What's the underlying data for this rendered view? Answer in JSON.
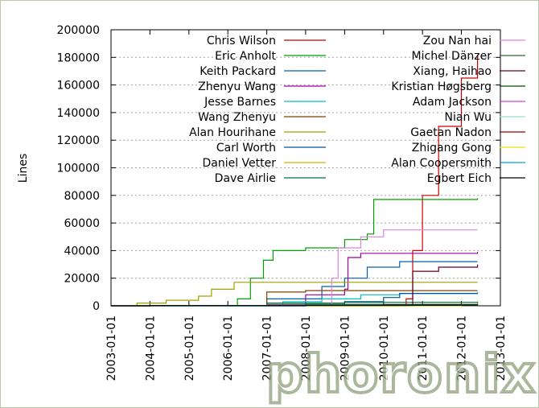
{
  "watermark": "phoronix",
  "chart_data": {
    "type": "line",
    "title": "",
    "xlabel": "",
    "ylabel": "Lines",
    "ylim": [
      0,
      200000
    ],
    "yticks": [
      0,
      20000,
      40000,
      60000,
      80000,
      100000,
      120000,
      140000,
      160000,
      180000,
      200000
    ],
    "xlim": [
      "2003-01-01",
      "2013-01-01"
    ],
    "xticks": [
      "2003-01-01",
      "2004-01-01",
      "2005-01-01",
      "2006-01-01",
      "2007-01-01",
      "2008-01-01",
      "2009-01-01",
      "2010-01-01",
      "2011-01-01",
      "2012-01-01",
      "2013-01-01"
    ],
    "grid": "horizontal-dashed",
    "legend_position": "top-inside",
    "series": [
      {
        "name": "Chris Wilson",
        "color": "#cc0000",
        "points": [
          [
            "2003-01-01",
            0
          ],
          [
            "2010-05-01",
            0
          ],
          [
            "2010-08-01",
            5000
          ],
          [
            "2010-10-01",
            40000
          ],
          [
            "2011-01-01",
            80000
          ],
          [
            "2011-06-01",
            130000
          ],
          [
            "2012-01-01",
            165000
          ],
          [
            "2012-06-01",
            182000
          ]
        ]
      },
      {
        "name": "Eric Anholt",
        "color": "#00a000",
        "points": [
          [
            "2003-01-01",
            0
          ],
          [
            "2006-01-01",
            0
          ],
          [
            "2006-04-01",
            5000
          ],
          [
            "2006-08-01",
            20000
          ],
          [
            "2006-12-01",
            33000
          ],
          [
            "2007-03-01",
            40000
          ],
          [
            "2008-01-01",
            42000
          ],
          [
            "2009-01-01",
            48000
          ],
          [
            "2009-08-01",
            52000
          ],
          [
            "2009-10-01",
            77000
          ],
          [
            "2012-06-01",
            78000
          ]
        ]
      },
      {
        "name": "Keith Packard",
        "color": "#0060b0",
        "points": [
          [
            "2003-01-01",
            0
          ],
          [
            "2006-01-01",
            0
          ],
          [
            "2007-01-01",
            5000
          ],
          [
            "2008-06-01",
            14000
          ],
          [
            "2009-01-01",
            20000
          ],
          [
            "2009-08-01",
            28000
          ],
          [
            "2010-06-01",
            32000
          ],
          [
            "2012-06-01",
            32000
          ]
        ]
      },
      {
        "name": "Zhenyu Wang",
        "color": "#a000a0",
        "points": [
          [
            "2003-01-01",
            0
          ],
          [
            "2007-06-01",
            0
          ],
          [
            "2008-01-01",
            8000
          ],
          [
            "2009-01-01",
            12000
          ],
          [
            "2009-02-01",
            35000
          ],
          [
            "2009-06-01",
            38000
          ],
          [
            "2012-06-01",
            39000
          ]
        ]
      },
      {
        "name": "Jesse Barnes",
        "color": "#00c0c0",
        "points": [
          [
            "2003-01-01",
            0
          ],
          [
            "2007-01-01",
            0
          ],
          [
            "2007-06-01",
            3000
          ],
          [
            "2008-06-01",
            5000
          ],
          [
            "2009-06-01",
            8000
          ],
          [
            "2010-06-01",
            9000
          ],
          [
            "2012-06-01",
            10000
          ]
        ]
      },
      {
        "name": "Wang Zhenyu",
        "color": "#804000",
        "points": [
          [
            "2003-01-01",
            0
          ],
          [
            "2006-06-01",
            0
          ],
          [
            "2007-01-01",
            10000
          ],
          [
            "2008-01-01",
            11000
          ],
          [
            "2012-06-01",
            11000
          ]
        ]
      },
      {
        "name": "Alan Hourihane",
        "color": "#a0a000",
        "points": [
          [
            "2003-01-01",
            0
          ],
          [
            "2003-09-01",
            2000
          ],
          [
            "2004-06-01",
            4000
          ],
          [
            "2005-04-01",
            7000
          ],
          [
            "2005-08-01",
            12000
          ],
          [
            "2006-03-01",
            17000
          ],
          [
            "2012-06-01",
            17000
          ]
        ]
      },
      {
        "name": "Carl Worth",
        "color": "#0050a0",
        "points": [
          [
            "2003-01-01",
            0
          ],
          [
            "2008-06-01",
            0
          ],
          [
            "2009-01-01",
            3000
          ],
          [
            "2010-01-01",
            6000
          ],
          [
            "2010-06-01",
            9000
          ],
          [
            "2012-06-01",
            9000
          ]
        ]
      },
      {
        "name": "Daniel Vetter",
        "color": "#e0b000",
        "points": [
          [
            "2003-01-01",
            0
          ],
          [
            "2010-01-01",
            0
          ],
          [
            "2011-01-01",
            1000
          ],
          [
            "2012-06-01",
            3000
          ]
        ]
      },
      {
        "name": "Dave Airlie",
        "color": "#007040",
        "points": [
          [
            "2003-01-01",
            0
          ],
          [
            "2006-01-01",
            0
          ],
          [
            "2007-01-01",
            2000
          ],
          [
            "2009-01-01",
            2500
          ],
          [
            "2012-06-01",
            3000
          ]
        ]
      },
      {
        "name": "Zou Nan hai",
        "color": "#e080e0",
        "points": [
          [
            "2003-01-01",
            0
          ],
          [
            "2008-06-01",
            0
          ],
          [
            "2008-09-01",
            20000
          ],
          [
            "2008-11-01",
            42000
          ],
          [
            "2009-06-01",
            50000
          ],
          [
            "2010-01-01",
            55000
          ],
          [
            "2012-06-01",
            55000
          ]
        ]
      },
      {
        "name": "Michel Dänzer",
        "color": "#306030",
        "points": [
          [
            "2003-01-01",
            0
          ],
          [
            "2006-01-01",
            0
          ],
          [
            "2007-01-01",
            1000
          ],
          [
            "2012-06-01",
            1000
          ]
        ]
      },
      {
        "name": "Xiang, Haihao",
        "color": "#600020",
        "points": [
          [
            "2003-01-01",
            0
          ],
          [
            "2010-01-01",
            0
          ],
          [
            "2010-10-01",
            25000
          ],
          [
            "2011-06-01",
            28000
          ],
          [
            "2012-06-01",
            30000
          ]
        ]
      },
      {
        "name": "Kristian Høgsberg",
        "color": "#005000",
        "points": [
          [
            "2003-01-01",
            0
          ],
          [
            "2007-01-01",
            0
          ],
          [
            "2008-01-01",
            1000
          ],
          [
            "2012-06-01",
            1500
          ]
        ]
      },
      {
        "name": "Adam Jackson",
        "color": "#d040d0",
        "points": [
          [
            "2003-01-01",
            0
          ],
          [
            "2006-01-01",
            0
          ],
          [
            "2007-01-01",
            500
          ],
          [
            "2012-06-01",
            800
          ]
        ]
      },
      {
        "name": "Nian Wu",
        "color": "#90e0d0",
        "points": [
          [
            "2003-01-01",
            0
          ],
          [
            "2007-06-01",
            0
          ],
          [
            "2008-01-01",
            500
          ],
          [
            "2012-06-01",
            500
          ]
        ]
      },
      {
        "name": "Gaetan Nadon",
        "color": "#900000",
        "points": [
          [
            "2003-01-01",
            0
          ],
          [
            "2008-01-01",
            0
          ],
          [
            "2010-01-01",
            500
          ],
          [
            "2012-06-01",
            700
          ]
        ]
      },
      {
        "name": "Zhigang Gong",
        "color": "#f0e000",
        "points": [
          [
            "2003-01-01",
            0
          ],
          [
            "2011-01-01",
            0
          ],
          [
            "2012-01-01",
            300
          ],
          [
            "2012-06-01",
            400
          ]
        ]
      },
      {
        "name": "Alan Coopersmith",
        "color": "#00a0e0",
        "points": [
          [
            "2003-01-01",
            0
          ],
          [
            "2006-01-01",
            0
          ],
          [
            "2008-01-01",
            300
          ],
          [
            "2012-06-01",
            500
          ]
        ]
      },
      {
        "name": "Egbert Eich",
        "color": "#000000",
        "points": [
          [
            "2003-01-01",
            0
          ],
          [
            "2004-01-01",
            200
          ],
          [
            "2008-01-01",
            400
          ],
          [
            "2012-06-01",
            500
          ]
        ]
      }
    ]
  }
}
